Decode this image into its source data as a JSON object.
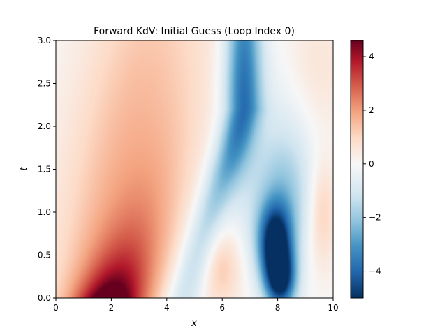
{
  "chart_data": {
    "type": "heatmap",
    "title": "Forward KdV: Initial Guess (Loop Index 0)",
    "xlabel": "x",
    "ylabel": "t",
    "xlim": [
      0,
      10
    ],
    "ylim": [
      0,
      3
    ],
    "xticks": [
      "0",
      "2",
      "4",
      "6",
      "8",
      "10"
    ],
    "yticks": [
      "0.0",
      "0.5",
      "1.0",
      "1.5",
      "2.0",
      "2.5",
      "3.0"
    ],
    "colorbar": {
      "colormap": "RdBu_r",
      "range": [
        -5.0,
        4.6
      ],
      "ticks": [
        "4",
        "2",
        "0",
        "−2",
        "−4"
      ]
    },
    "features": [
      {
        "x": 1.9,
        "t": 0.1,
        "value": 4.5
      },
      {
        "x": 7.8,
        "t": 0.7,
        "value": -5.0
      },
      {
        "x": 8.0,
        "t": 0.25,
        "value": -5.0
      },
      {
        "x": 6.7,
        "t": 2.5,
        "value": -2.5
      },
      {
        "x": 5.9,
        "t": 0.4,
        "value": 1.2
      },
      {
        "x": 9.6,
        "t": 1.0,
        "value": 1.3
      }
    ]
  }
}
